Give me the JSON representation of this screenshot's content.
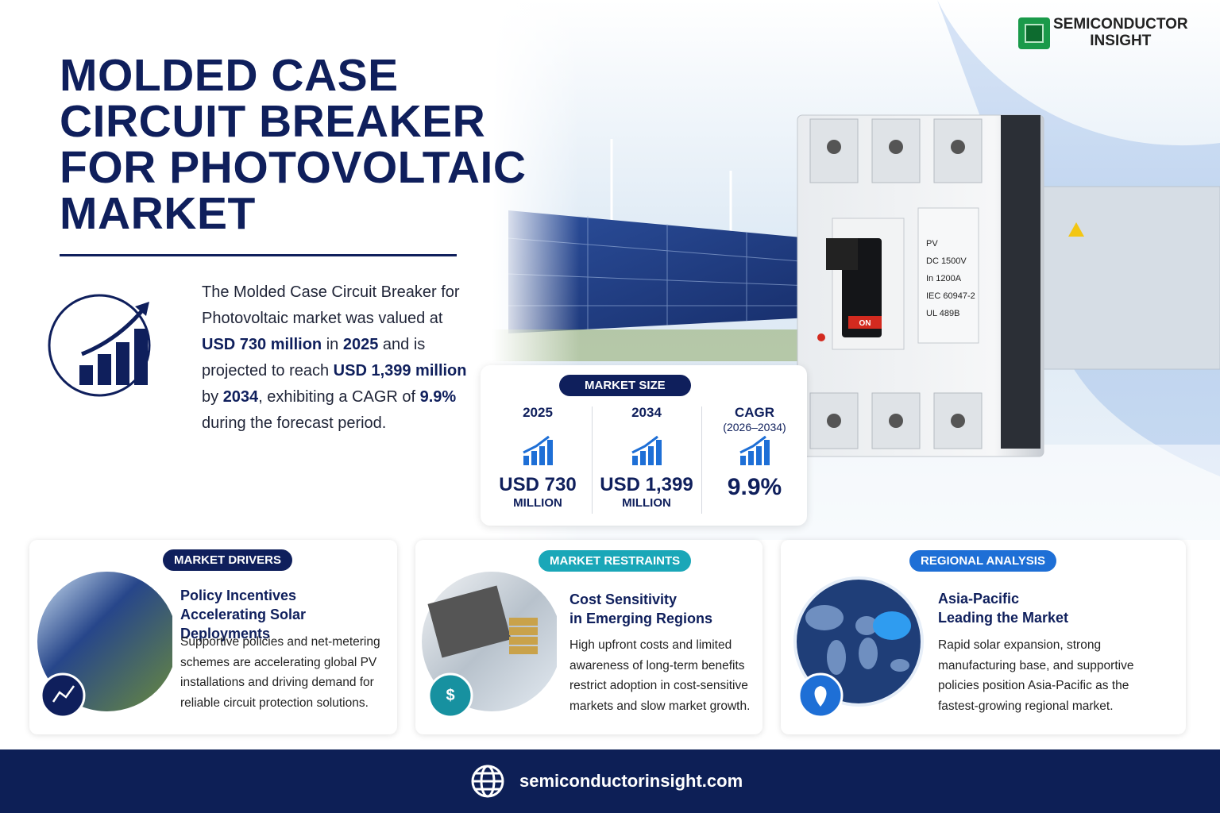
{
  "brand": {
    "lines": [
      "SEMICONDUCTOR",
      "INSIGHT"
    ]
  },
  "title": {
    "lines": [
      "MOLDED CASE",
      "CIRCUIT BREAKER",
      "FOR PHOTOVOLTAIC",
      "MARKET"
    ]
  },
  "summary": {
    "runs": [
      {
        "text": "The Molded Case Circuit Breaker for Photovoltaic market was valued at ",
        "bold": false
      },
      {
        "text": "USD 730 million",
        "bold": true
      },
      {
        "text": " in ",
        "bold": false
      },
      {
        "text": "2025",
        "bold": true
      },
      {
        "text": " and is projected to reach ",
        "bold": false
      },
      {
        "text": "USD 1,399 million",
        "bold": true
      },
      {
        "text": " by ",
        "bold": false
      },
      {
        "text": "2034",
        "bold": true
      },
      {
        "text": ", exhibiting a CAGR of ",
        "bold": false
      },
      {
        "text": "9.9%",
        "bold": true
      },
      {
        "text": " during the forecast period.",
        "bold": false
      }
    ]
  },
  "product": {
    "label_lines": [
      "PV",
      "DC 1500V",
      "In 1200A",
      "IEC 60947-2",
      "UL 489B"
    ],
    "switch_label": "ON"
  },
  "market_size": {
    "tag": "MARKET SIZE",
    "columns": [
      {
        "heading": "2025",
        "value": "USD 730",
        "unit": "MILLION"
      },
      {
        "heading": "2034",
        "value": "USD 1,399",
        "unit": "MILLION"
      },
      {
        "heading": "CAGR",
        "subheading": "(2026–2034)",
        "value": "9.9%"
      }
    ]
  },
  "cards": [
    {
      "tag": "MARKET DRIVERS",
      "title_lines": [
        "Policy Incentives",
        "Accelerating Solar Deployments"
      ],
      "body": "Supportive policies and net-metering schemes are accelerating global PV installations and driving demand for reliable circuit protection solutions."
    },
    {
      "tag": "MARKET RESTRAINTS",
      "title_lines": [
        "Cost Sensitivity",
        "in Emerging Regions"
      ],
      "body": "High upfront costs and limited awareness of long-term benefits restrict adoption in cost-sensitive markets and slow market growth."
    },
    {
      "tag": "REGIONAL ANALYSIS",
      "title_lines": [
        "Asia-Pacific",
        "Leading the Market"
      ],
      "body": "Rapid solar expansion, strong manufacturing base, and supportive policies position Asia-Pacific as the fastest-growing regional market."
    }
  ],
  "footer": {
    "url": "semiconductorinsight.com"
  }
}
